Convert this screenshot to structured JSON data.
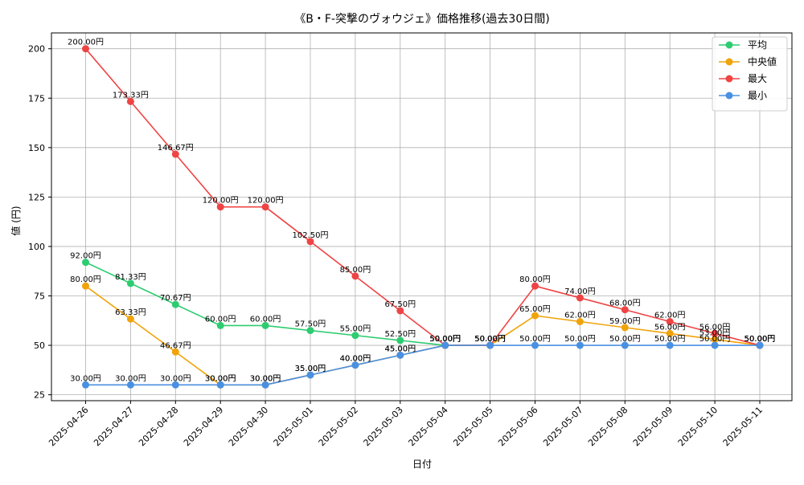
{
  "chart_data": {
    "type": "line",
    "title": "《B・F-突撃のヴォウジェ》価格推移(過去30日間)",
    "xlabel": "日付",
    "ylabel": "値 (円)",
    "ylim": [
      22,
      208
    ],
    "yticks": [
      25,
      50,
      75,
      100,
      125,
      150,
      175,
      200
    ],
    "grid": true,
    "legend_position": "top-right",
    "label_suffix": "円",
    "categories": [
      "2025-04-26",
      "2025-04-27",
      "2025-04-28",
      "2025-04-29",
      "2025-04-30",
      "2025-05-01",
      "2025-05-02",
      "2025-05-03",
      "2025-05-04",
      "2025-05-05",
      "2025-05-06",
      "2025-05-07",
      "2025-05-08",
      "2025-05-09",
      "2025-05-10",
      "2025-05-11"
    ],
    "series": [
      {
        "name": "平均",
        "color": "#2ecc71",
        "values": [
          92.0,
          81.33,
          70.67,
          60.0,
          60.0,
          57.5,
          55.0,
          52.5,
          50.0,
          50.0,
          null,
          null,
          null,
          null,
          null,
          50.0
        ]
      },
      {
        "name": "中央値",
        "color": "#f0a30a",
        "values": [
          80.0,
          63.33,
          46.67,
          30.0,
          30.0,
          35.0,
          40.0,
          45.0,
          50.0,
          50.0,
          65.0,
          62.0,
          59.0,
          56.0,
          53.0,
          50.0
        ]
      },
      {
        "name": "最大",
        "color": "#ef4444",
        "values": [
          200.0,
          173.33,
          146.67,
          120.0,
          120.0,
          102.5,
          85.0,
          67.5,
          50.0,
          50.0,
          80.0,
          74.0,
          68.0,
          62.0,
          56.0,
          50.0
        ]
      },
      {
        "name": "最小",
        "color": "#4a90e2",
        "values": [
          30.0,
          30.0,
          30.0,
          30.0,
          30.0,
          35.0,
          40.0,
          45.0,
          50.0,
          50.0,
          50.0,
          50.0,
          50.0,
          50.0,
          50.0,
          50.0
        ]
      }
    ]
  }
}
